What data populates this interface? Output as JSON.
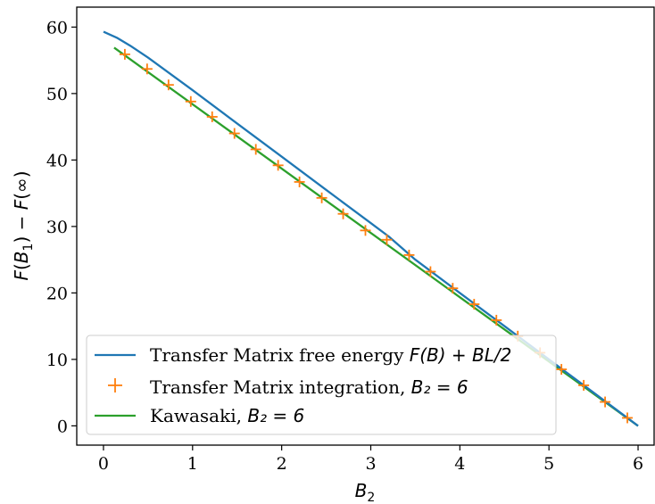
{
  "chart_data": {
    "type": "line",
    "xlabel": "B₂",
    "ylabel": "F(B₁) − F(∞)",
    "xlim": [
      -0.3,
      6.18
    ],
    "ylim": [
      -2.9,
      63.0
    ],
    "x_ticks": [
      "0",
      "1",
      "2",
      "3",
      "4",
      "5",
      "6"
    ],
    "y_ticks": [
      "0",
      "10",
      "20",
      "30",
      "40",
      "50",
      "60"
    ],
    "x_tick_values": [
      0,
      1,
      2,
      3,
      4,
      5,
      6
    ],
    "y_tick_values": [
      0,
      10,
      20,
      30,
      40,
      50,
      60
    ],
    "legend_position": "lower-left",
    "series": [
      {
        "name": "Transfer Matrix free energy F(B) + BL/2",
        "style": "line",
        "color": "#1f77b4",
        "x": [
          0.0,
          0.15,
          0.3,
          0.5,
          1.0,
          1.5,
          2.0,
          2.5,
          3.0,
          3.2,
          3.5,
          4.0,
          4.5,
          5.0,
          5.5,
          6.0
        ],
        "y": [
          59.3,
          58.4,
          57.2,
          55.4,
          50.5,
          45.5,
          40.5,
          35.5,
          30.5,
          28.5,
          25.0,
          20.0,
          15.0,
          10.0,
          5.0,
          0.0
        ]
      },
      {
        "name": "Transfer Matrix integration, B₂ = 6",
        "style": "plus",
        "color": "#ff7f0e",
        "x": [
          0.24,
          0.49,
          0.73,
          0.98,
          1.22,
          1.47,
          1.71,
          1.96,
          2.2,
          2.45,
          2.69,
          2.94,
          3.18,
          3.43,
          3.67,
          3.92,
          4.16,
          4.41,
          4.65,
          4.9,
          5.14,
          5.39,
          5.63,
          5.88
        ],
        "y": [
          55.9,
          53.7,
          51.3,
          48.8,
          46.5,
          44.0,
          41.6,
          39.2,
          36.7,
          34.3,
          31.9,
          29.4,
          28.0,
          25.7,
          23.2,
          20.7,
          18.3,
          15.9,
          13.5,
          11.0,
          8.5,
          6.1,
          3.6,
          1.2
        ]
      },
      {
        "name": "Kawasaki, B₂ = 6",
        "style": "line",
        "color": "#2ca02c",
        "x": [
          0.12,
          6.0
        ],
        "y": [
          56.9,
          0.0
        ]
      }
    ],
    "legend": {
      "entries": [
        {
          "prefix": "Transfer Matrix free energy ",
          "math": "F(B) + BL/2"
        },
        {
          "prefix": "Transfer Matrix integration, ",
          "math": "B₂ = 6"
        },
        {
          "prefix": "Kawasaki, ",
          "math": "B₂ = 6"
        }
      ]
    }
  }
}
